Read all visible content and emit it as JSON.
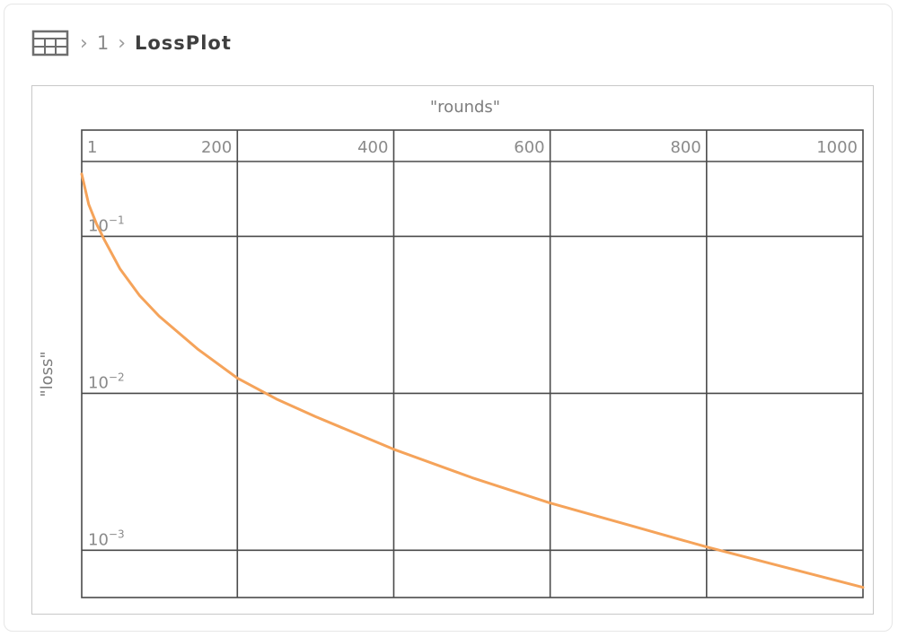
{
  "breadcrumb": {
    "icon": "table-icon",
    "separator": "›",
    "index": "1",
    "current": "LossPlot"
  },
  "chart_data": {
    "type": "line",
    "xlabel": "\"rounds\"",
    "ylabel": "\"loss\"",
    "xlim": [
      1,
      1000
    ],
    "ylim": [
      0.0005,
      0.3
    ],
    "ylog": true,
    "x_ticks": [
      {
        "value": 1,
        "label": "1"
      },
      {
        "value": 200,
        "label": "200"
      },
      {
        "value": 400,
        "label": "400"
      },
      {
        "value": 600,
        "label": "600"
      },
      {
        "value": 800,
        "label": "800"
      },
      {
        "value": 1000,
        "label": "1000"
      }
    ],
    "y_ticks": [
      {
        "value": 0.1,
        "base": "10",
        "exp": "−1"
      },
      {
        "value": 0.01,
        "base": "10",
        "exp": "−2"
      },
      {
        "value": 0.001,
        "base": "10",
        "exp": "−3"
      }
    ],
    "grid": true,
    "series": [
      {
        "color": "#f5a35a",
        "x": [
          1,
          10,
          20,
          30,
          50,
          75,
          100,
          150,
          200,
          250,
          300,
          400,
          500,
          600,
          700,
          800,
          900,
          1000
        ],
        "y": [
          0.25,
          0.16,
          0.12,
          0.095,
          0.062,
          0.042,
          0.031,
          0.019,
          0.0125,
          0.0092,
          0.0071,
          0.0044,
          0.0029,
          0.002,
          0.00145,
          0.00105,
          0.00078,
          0.00058
        ]
      }
    ]
  }
}
